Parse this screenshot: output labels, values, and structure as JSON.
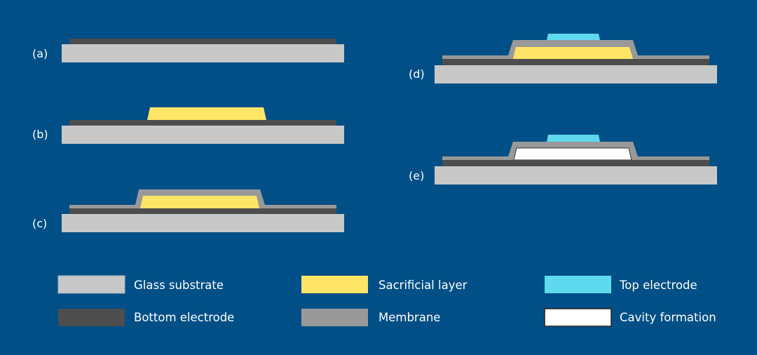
{
  "colors": {
    "background": "#004f86",
    "glass_substrate": "#c8c8c8",
    "bottom_electrode": "#4d4d4d",
    "membrane": "#999999",
    "sacrificial_layer": "#ffe566",
    "top_electrode": "#5fd9ee",
    "cavity": "#ffffff"
  },
  "steps": [
    {
      "label": "(a)"
    },
    {
      "label": "(b)"
    },
    {
      "label": "(c)"
    },
    {
      "label": "(d)"
    },
    {
      "label": "(e)"
    }
  ],
  "legend": [
    {
      "label": "Glass substrate"
    },
    {
      "label": "Bottom electrode"
    },
    {
      "label": "Sacrificial layer"
    },
    {
      "label": "Membrane"
    },
    {
      "label": "Top electrode"
    },
    {
      "label": "Cavity formation"
    }
  ]
}
